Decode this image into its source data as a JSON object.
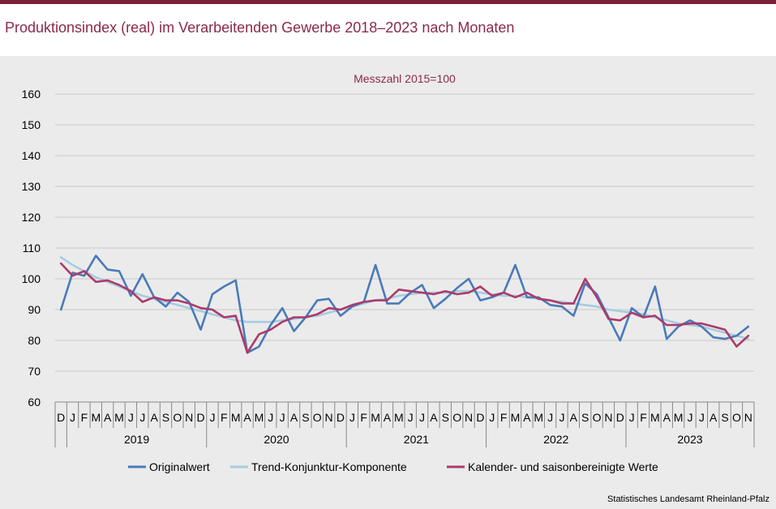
{
  "title": "Produktionsindex (real) im Verarbeitenden Gewerbe 2018–2023 nach Monaten",
  "source": "Statistisches Landesamt Rheinland-Pfalz",
  "chart_data": {
    "type": "line",
    "subtitle": "Messzahl 2015=100",
    "ylim": [
      60,
      160
    ],
    "yticks": [
      60,
      70,
      80,
      90,
      100,
      110,
      120,
      130,
      140,
      150,
      160
    ],
    "grid": true,
    "legend_position": "bottom",
    "categories": [
      "D",
      "J",
      "F",
      "M",
      "A",
      "M",
      "J",
      "J",
      "A",
      "S",
      "O",
      "N",
      "D",
      "J",
      "F",
      "M",
      "A",
      "M",
      "J",
      "J",
      "A",
      "S",
      "O",
      "N",
      "D",
      "J",
      "F",
      "M",
      "A",
      "M",
      "J",
      "J",
      "A",
      "S",
      "O",
      "N",
      "D",
      "J",
      "F",
      "M",
      "A",
      "M",
      "J",
      "J",
      "A",
      "S",
      "O",
      "N",
      "D",
      "J",
      "F",
      "M",
      "A",
      "M",
      "J",
      "J",
      "A",
      "S",
      "O",
      "N"
    ],
    "year_labels": [
      "2019",
      "2020",
      "2021",
      "2022",
      "2023"
    ],
    "series": [
      {
        "name": "Originalwert",
        "color": "#4a7ab8",
        "values": [
          90,
          102,
          101,
          107.5,
          103,
          102.5,
          94.5,
          101.5,
          94,
          91,
          95.5,
          92.5,
          83.5,
          95,
          97.5,
          99.5,
          76,
          78,
          85,
          90.5,
          83,
          87.5,
          93,
          93.5,
          88,
          91,
          92.5,
          104.5,
          92,
          92,
          95.5,
          98,
          90.5,
          93.5,
          97,
          100,
          93,
          94,
          95.5,
          104.5,
          94,
          94,
          91.5,
          91,
          88,
          98.5,
          95,
          87.5,
          80,
          90.5,
          87.5,
          97.5,
          80.5,
          84.5,
          86.5,
          84.5,
          81,
          80.5,
          81.5,
          84.5
        ]
      },
      {
        "name": "Trend-Konjunktur-Komponente",
        "color": "#a6cce0",
        "values": [
          107,
          104.5,
          102.5,
          100.5,
          99,
          97.5,
          96,
          94.5,
          93.5,
          92.5,
          91.5,
          90.5,
          89.5,
          88.5,
          87.5,
          86.5,
          86,
          86,
          86,
          86.5,
          87,
          87.5,
          88,
          89,
          90,
          91,
          92,
          93,
          93.5,
          94.5,
          95,
          95.5,
          95.5,
          95.5,
          96,
          96,
          95.5,
          95,
          94.5,
          94.5,
          94,
          93.5,
          93,
          92.5,
          92,
          91.5,
          91,
          90,
          89.5,
          89,
          88.5,
          87.5,
          86.5,
          85.5,
          85,
          84.5,
          83.5,
          82.5,
          81.5,
          80.5
        ]
      },
      {
        "name": "Kalender- und saisonbereinigte Werte",
        "color": "#ac3a6a",
        "values": [
          105,
          101,
          102.5,
          99,
          99.5,
          98,
          96,
          92.5,
          94,
          93,
          93,
          92,
          90.5,
          90,
          87.5,
          88,
          76,
          82,
          83.5,
          86,
          87.5,
          87.5,
          88.5,
          90.5,
          90,
          91.5,
          92.5,
          93,
          93,
          96.5,
          96,
          95.5,
          95,
          96,
          95,
          95.5,
          97.5,
          94.5,
          95.5,
          94,
          95.5,
          93.5,
          93,
          92,
          92,
          100,
          94,
          87,
          86.5,
          89,
          87.5,
          88,
          85,
          85,
          85.5,
          85.5,
          84.5,
          83.5,
          78,
          81.5
        ]
      }
    ]
  }
}
